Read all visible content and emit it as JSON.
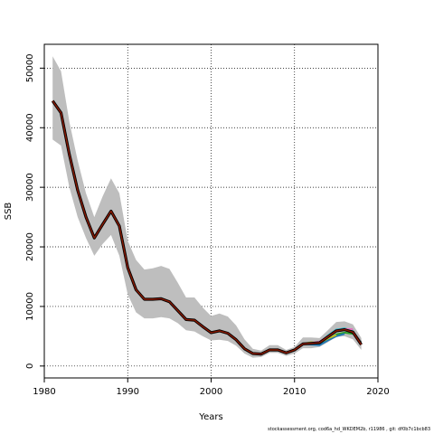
{
  "chart_data": {
    "type": "line",
    "xlabel": "Years",
    "ylabel": "SSB",
    "xlim": [
      1980,
      2020
    ],
    "ylim": [
      -2000,
      54000
    ],
    "x_ticks": [
      1980,
      1990,
      2000,
      2010,
      2020
    ],
    "y_ticks": [
      0,
      10000,
      20000,
      30000,
      40000,
      50000
    ],
    "grid": true,
    "colors": {
      "band": "#bebebe",
      "main_line": "#000000",
      "main_line_inner": "#8b1a00",
      "retro_colors": [
        "#2ca02c",
        "#1f77b4",
        "#17becf",
        "#bcbd22",
        "#e377c2",
        "#7f7f7f",
        "#9467bd"
      ]
    },
    "ci_band": {
      "x": [
        1981,
        1982,
        1983,
        1984,
        1985,
        1986,
        1987,
        1988,
        1989,
        1990,
        1991,
        1992,
        1993,
        1994,
        1995,
        1996,
        1997,
        1998,
        1999,
        2000,
        2001,
        2002,
        2003,
        2004,
        2005,
        2006,
        2007,
        2008,
        2009,
        2010,
        2011,
        2012,
        2013,
        2014,
        2015,
        2016,
        2017,
        2018
      ],
      "upper": [
        52000,
        49500,
        41000,
        34500,
        29000,
        25000,
        28500,
        31500,
        29000,
        21000,
        17800,
        16200,
        16400,
        16800,
        16300,
        14000,
        11500,
        11500,
        9800,
        8400,
        8800,
        8300,
        6800,
        4500,
        2900,
        2600,
        3500,
        3500,
        2700,
        3200,
        4800,
        4800,
        4700,
        6000,
        7400,
        7500,
        7000,
        4700
      ],
      "lower": [
        38000,
        37000,
        30000,
        25000,
        21500,
        18500,
        20500,
        22000,
        18500,
        12000,
        9000,
        8000,
        8000,
        8200,
        8000,
        7200,
        6000,
        5800,
        5000,
        4300,
        4400,
        4200,
        3400,
        2100,
        1400,
        1500,
        2200,
        2200,
        1700,
        2100,
        3000,
        3000,
        3200,
        4000,
        4900,
        5000,
        4500,
        2700
      ]
    },
    "series": [
      {
        "x": [
          1981,
          1982,
          1983,
          1984,
          1985,
          1986,
          1987,
          1988,
          1989,
          1990,
          1991,
          1992,
          1993,
          1994,
          1995,
          1996,
          1997,
          1998,
          1999,
          2000,
          2001,
          2002,
          2003,
          2004,
          2005,
          2006,
          2007,
          2008,
          2009,
          2010,
          2011,
          2012,
          2013,
          2014,
          2015,
          2016,
          2017,
          2018
        ],
        "values": [
          44500,
          42500,
          35500,
          29500,
          25000,
          21500,
          23800,
          26000,
          23500,
          16500,
          12800,
          11200,
          11200,
          11300,
          10800,
          9300,
          7800,
          7700,
          6600,
          5600,
          5900,
          5500,
          4400,
          2900,
          2100,
          2000,
          2700,
          2700,
          2200,
          2700,
          3700,
          3800,
          3900,
          4900,
          5900,
          6100,
          5700,
          3600
        ]
      }
    ],
    "retro_series": [
      {
        "x": [
          2010,
          2011,
          2012,
          2013,
          2014,
          2015,
          2016,
          2017
        ],
        "values": [
          2700,
          3700,
          3700,
          3600,
          4400,
          5300,
          5600,
          5400
        ]
      },
      {
        "x": [
          2010,
          2011,
          2012,
          2013,
          2014,
          2015,
          2016
        ],
        "values": [
          2700,
          3700,
          3600,
          3500,
          4300,
          5000,
          5400
        ]
      },
      {
        "x": [
          2010,
          2011,
          2012,
          2013,
          2014,
          2015,
          2016,
          2017
        ],
        "values": [
          2700,
          3700,
          3900,
          4000,
          5100,
          6100,
          6300,
          6000
        ]
      },
      {
        "x": [
          2010,
          2011,
          2012,
          2013,
          2014,
          2015
        ],
        "values": [
          2700,
          3700,
          4000,
          3900,
          4600,
          5200
        ]
      },
      {
        "x": [
          2010,
          2011,
          2012,
          2013,
          2014,
          2015,
          2016,
          2017
        ],
        "values": [
          2700,
          3700,
          3900,
          4100,
          5000,
          6000,
          6200,
          6200
        ]
      },
      {
        "x": [
          2010,
          2011,
          2012,
          2013,
          2014,
          2015,
          2016,
          2017,
          2018
        ],
        "values": [
          2700,
          3700,
          3900,
          4000,
          5000,
          5800,
          6000,
          5800,
          4000
        ]
      }
    ]
  },
  "footer": {
    "text": "stockassessment.org,  cod6a_hd_WKDEM2b,  r11986 ,  git:  df0b7c1bcb83"
  }
}
